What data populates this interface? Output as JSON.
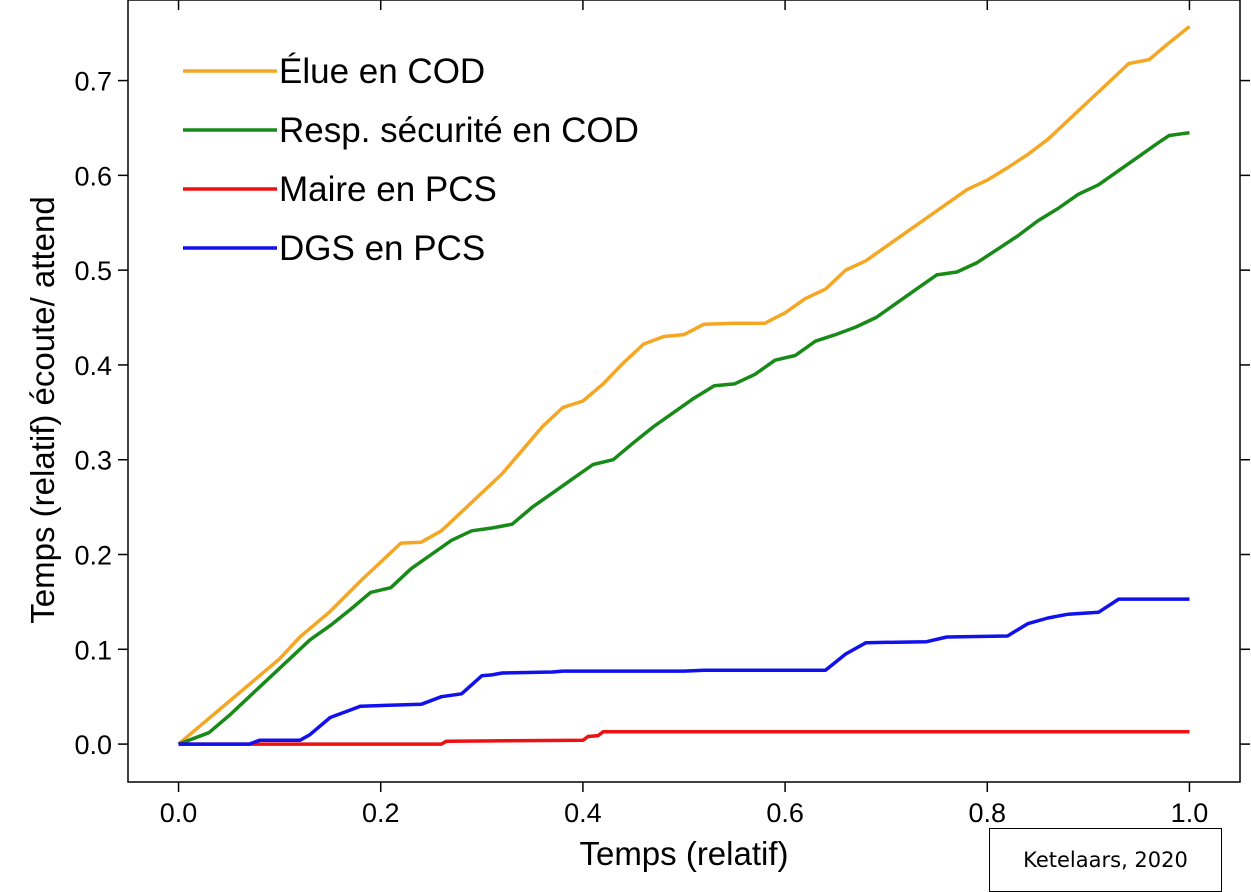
{
  "credit": "Ketelaars, 2020",
  "chart_data": {
    "type": "line",
    "xlabel": "Temps (relatif)",
    "ylabel": "Temps (relatif) écoute/ attend",
    "xlim": [
      -0.05,
      1.05
    ],
    "ylim": [
      -0.04,
      0.785
    ],
    "xticks": [
      0.0,
      0.2,
      0.4,
      0.6,
      0.8,
      1.0
    ],
    "xtick_labels": [
      "0.0",
      "0.2",
      "0.4",
      "0.6",
      "0.8",
      "1.0"
    ],
    "yticks": [
      0.0,
      0.1,
      0.2,
      0.3,
      0.4,
      0.5,
      0.6,
      0.7
    ],
    "ytick_labels": [
      "0.0",
      "0.1",
      "0.2",
      "0.3",
      "0.4",
      "0.5",
      "0.6",
      "0.7"
    ],
    "grid": false,
    "legend_position": "top-left",
    "series": [
      {
        "name": "Élue en COD",
        "color": "#f5a623",
        "points": [
          [
            0,
            0
          ],
          [
            0.05,
            0.045
          ],
          [
            0.1,
            0.09
          ],
          [
            0.12,
            0.113
          ],
          [
            0.15,
            0.14
          ],
          [
            0.18,
            0.172
          ],
          [
            0.2,
            0.192
          ],
          [
            0.22,
            0.212
          ],
          [
            0.24,
            0.213
          ],
          [
            0.26,
            0.225
          ],
          [
            0.28,
            0.245
          ],
          [
            0.3,
            0.265
          ],
          [
            0.32,
            0.285
          ],
          [
            0.34,
            0.31
          ],
          [
            0.36,
            0.335
          ],
          [
            0.38,
            0.355
          ],
          [
            0.4,
            0.362
          ],
          [
            0.42,
            0.38
          ],
          [
            0.44,
            0.402
          ],
          [
            0.46,
            0.422
          ],
          [
            0.48,
            0.43
          ],
          [
            0.5,
            0.432
          ],
          [
            0.52,
            0.443
          ],
          [
            0.55,
            0.444
          ],
          [
            0.58,
            0.444
          ],
          [
            0.6,
            0.455
          ],
          [
            0.62,
            0.47
          ],
          [
            0.64,
            0.48
          ],
          [
            0.66,
            0.5
          ],
          [
            0.68,
            0.51
          ],
          [
            0.7,
            0.525
          ],
          [
            0.72,
            0.54
          ],
          [
            0.74,
            0.555
          ],
          [
            0.76,
            0.57
          ],
          [
            0.78,
            0.585
          ],
          [
            0.8,
            0.595
          ],
          [
            0.82,
            0.608
          ],
          [
            0.84,
            0.622
          ],
          [
            0.86,
            0.638
          ],
          [
            0.88,
            0.658
          ],
          [
            0.9,
            0.678
          ],
          [
            0.92,
            0.698
          ],
          [
            0.94,
            0.718
          ],
          [
            0.96,
            0.722
          ],
          [
            0.98,
            0.74
          ],
          [
            1.0,
            0.757
          ]
        ]
      },
      {
        "name": "Resp. sécurité en COD",
        "color": "#188a18",
        "points": [
          [
            0,
            0
          ],
          [
            0.03,
            0.012
          ],
          [
            0.05,
            0.03
          ],
          [
            0.08,
            0.06
          ],
          [
            0.1,
            0.08
          ],
          [
            0.13,
            0.11
          ],
          [
            0.15,
            0.125
          ],
          [
            0.17,
            0.142
          ],
          [
            0.19,
            0.16
          ],
          [
            0.21,
            0.165
          ],
          [
            0.23,
            0.185
          ],
          [
            0.25,
            0.2
          ],
          [
            0.27,
            0.215
          ],
          [
            0.29,
            0.225
          ],
          [
            0.31,
            0.228
          ],
          [
            0.33,
            0.232
          ],
          [
            0.35,
            0.25
          ],
          [
            0.37,
            0.265
          ],
          [
            0.39,
            0.28
          ],
          [
            0.41,
            0.295
          ],
          [
            0.43,
            0.3
          ],
          [
            0.45,
            0.318
          ],
          [
            0.47,
            0.335
          ],
          [
            0.49,
            0.35
          ],
          [
            0.51,
            0.365
          ],
          [
            0.53,
            0.378
          ],
          [
            0.55,
            0.38
          ],
          [
            0.57,
            0.39
          ],
          [
            0.59,
            0.405
          ],
          [
            0.61,
            0.41
          ],
          [
            0.63,
            0.425
          ],
          [
            0.65,
            0.432
          ],
          [
            0.67,
            0.44
          ],
          [
            0.69,
            0.45
          ],
          [
            0.71,
            0.465
          ],
          [
            0.73,
            0.48
          ],
          [
            0.75,
            0.495
          ],
          [
            0.77,
            0.498
          ],
          [
            0.79,
            0.508
          ],
          [
            0.81,
            0.522
          ],
          [
            0.83,
            0.536
          ],
          [
            0.85,
            0.552
          ],
          [
            0.87,
            0.565
          ],
          [
            0.89,
            0.58
          ],
          [
            0.91,
            0.59
          ],
          [
            0.93,
            0.605
          ],
          [
            0.95,
            0.62
          ],
          [
            0.97,
            0.635
          ],
          [
            0.98,
            0.642
          ],
          [
            1.0,
            0.645
          ]
        ]
      },
      {
        "name": "Maire en PCS",
        "color": "#ee1111",
        "points": [
          [
            0,
            0
          ],
          [
            0.26,
            0
          ],
          [
            0.265,
            0.003
          ],
          [
            0.4,
            0.004
          ],
          [
            0.405,
            0.008
          ],
          [
            0.415,
            0.009
          ],
          [
            0.42,
            0.013
          ],
          [
            1.0,
            0.013
          ]
        ]
      },
      {
        "name": "DGS en PCS",
        "color": "#1111ee",
        "points": [
          [
            0,
            0
          ],
          [
            0.07,
            0
          ],
          [
            0.08,
            0.004
          ],
          [
            0.12,
            0.004
          ],
          [
            0.13,
            0.01
          ],
          [
            0.15,
            0.028
          ],
          [
            0.17,
            0.036
          ],
          [
            0.18,
            0.04
          ],
          [
            0.24,
            0.042
          ],
          [
            0.26,
            0.05
          ],
          [
            0.28,
            0.053
          ],
          [
            0.3,
            0.072
          ],
          [
            0.31,
            0.073
          ],
          [
            0.32,
            0.075
          ],
          [
            0.37,
            0.076
          ],
          [
            0.38,
            0.077
          ],
          [
            0.5,
            0.077
          ],
          [
            0.52,
            0.078
          ],
          [
            0.64,
            0.078
          ],
          [
            0.66,
            0.095
          ],
          [
            0.68,
            0.107
          ],
          [
            0.74,
            0.108
          ],
          [
            0.76,
            0.113
          ],
          [
            0.82,
            0.114
          ],
          [
            0.84,
            0.127
          ],
          [
            0.86,
            0.133
          ],
          [
            0.88,
            0.137
          ],
          [
            0.91,
            0.139
          ],
          [
            0.93,
            0.153
          ],
          [
            1.0,
            0.153
          ]
        ]
      }
    ]
  }
}
